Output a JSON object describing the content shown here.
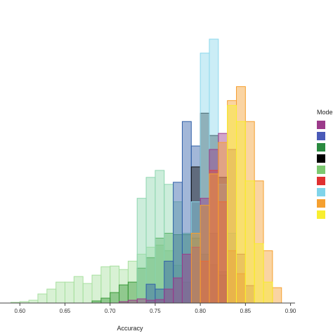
{
  "chart_data": {
    "type": "bar",
    "subtype": "overlapping-histogram",
    "title": "",
    "xlabel": "Accuracy",
    "ylabel": "",
    "xlim": [
      0.578,
      0.905
    ],
    "ylim": [
      0,
      420
    ],
    "bin_width": 0.01,
    "grid": false,
    "legend": {
      "title": "Model",
      "placement": "right",
      "entries": [
        "",
        "",
        "",
        "",
        "",
        "",
        "",
        "",
        ""
      ]
    },
    "x_ticks": [
      "0.60",
      "0.65",
      "0.70",
      "0.75",
      "0.80",
      "0.85",
      "0.90"
    ],
    "x_tick_values": [
      0.6,
      0.65,
      0.7,
      0.75,
      0.8,
      0.85,
      0.9
    ],
    "series": [
      {
        "color": "#a8e0a0",
        "bins": [
          [
            0.59,
            0.6,
            1
          ],
          [
            0.6,
            0.61,
            2
          ],
          [
            0.61,
            0.62,
            4
          ],
          [
            0.62,
            0.63,
            13
          ],
          [
            0.63,
            0.64,
            20
          ],
          [
            0.64,
            0.65,
            30
          ],
          [
            0.65,
            0.66,
            30
          ],
          [
            0.66,
            0.67,
            38
          ],
          [
            0.67,
            0.68,
            28
          ],
          [
            0.68,
            0.69,
            40
          ],
          [
            0.69,
            0.7,
            52
          ],
          [
            0.7,
            0.71,
            53
          ],
          [
            0.71,
            0.72,
            48
          ],
          [
            0.72,
            0.73,
            60
          ],
          [
            0.73,
            0.74,
            70
          ],
          [
            0.74,
            0.75,
            80
          ],
          [
            0.75,
            0.76,
            83
          ],
          [
            0.76,
            0.77,
            75
          ],
          [
            0.77,
            0.78,
            54
          ],
          [
            0.78,
            0.79,
            30
          ]
        ]
      },
      {
        "color": "#3a9a3a",
        "bins": [
          [
            0.68,
            0.69,
            3
          ],
          [
            0.69,
            0.7,
            7
          ],
          [
            0.7,
            0.71,
            15
          ],
          [
            0.71,
            0.72,
            26
          ],
          [
            0.72,
            0.73,
            30
          ],
          [
            0.73,
            0.74,
            50
          ],
          [
            0.74,
            0.75,
            65
          ],
          [
            0.75,
            0.76,
            93
          ],
          [
            0.76,
            0.77,
            100
          ],
          [
            0.77,
            0.78,
            98
          ],
          [
            0.78,
            0.79,
            98
          ],
          [
            0.79,
            0.8,
            93
          ],
          [
            0.8,
            0.81,
            70
          ],
          [
            0.81,
            0.82,
            55
          ],
          [
            0.82,
            0.83,
            40
          ]
        ]
      },
      {
        "color": "#8fd6b0",
        "bins": [
          [
            0.73,
            0.74,
            150
          ],
          [
            0.74,
            0.75,
            180
          ],
          [
            0.75,
            0.76,
            190
          ],
          [
            0.76,
            0.77,
            170
          ],
          [
            0.77,
            0.78,
            145
          ],
          [
            0.78,
            0.79,
            100
          ],
          [
            0.79,
            0.8,
            60
          ],
          [
            0.8,
            0.81,
            20
          ]
        ]
      },
      {
        "color": "#3060a8",
        "bins": [
          [
            0.74,
            0.75,
            27
          ],
          [
            0.75,
            0.76,
            20
          ],
          [
            0.76,
            0.77,
            60
          ],
          [
            0.77,
            0.78,
            173
          ],
          [
            0.78,
            0.79,
            260
          ],
          [
            0.79,
            0.8,
            225
          ],
          [
            0.8,
            0.81,
            140
          ],
          [
            0.81,
            0.82,
            100
          ],
          [
            0.82,
            0.83,
            45
          ]
        ]
      },
      {
        "color": "#101010",
        "bins": [
          [
            0.79,
            0.8,
            195
          ],
          [
            0.8,
            0.81,
            272
          ],
          [
            0.81,
            0.82,
            240
          ],
          [
            0.82,
            0.83,
            180
          ]
        ]
      },
      {
        "color": "#8cd8ec",
        "bins": [
          [
            0.79,
            0.8,
            145
          ],
          [
            0.8,
            0.81,
            358
          ],
          [
            0.81,
            0.82,
            378
          ],
          [
            0.82,
            0.83,
            170
          ],
          [
            0.83,
            0.84,
            100
          ]
        ]
      },
      {
        "color": "#9b3a8a",
        "bins": [
          [
            0.71,
            0.72,
            2
          ],
          [
            0.72,
            0.73,
            4
          ],
          [
            0.73,
            0.74,
            6
          ],
          [
            0.74,
            0.75,
            4
          ],
          [
            0.75,
            0.76,
            5
          ],
          [
            0.76,
            0.77,
            20
          ],
          [
            0.77,
            0.78,
            36
          ],
          [
            0.78,
            0.79,
            70
          ],
          [
            0.79,
            0.8,
            80
          ],
          [
            0.8,
            0.81,
            150
          ],
          [
            0.81,
            0.82,
            220
          ],
          [
            0.82,
            0.83,
            243
          ],
          [
            0.83,
            0.84,
            220
          ],
          [
            0.84,
            0.85,
            70
          ],
          [
            0.85,
            0.86,
            25
          ]
        ]
      },
      {
        "color": "#e04040",
        "bins": [
          [
            0.8,
            0.81,
            60
          ],
          [
            0.81,
            0.82,
            190
          ],
          [
            0.82,
            0.83,
            145
          ],
          [
            0.83,
            0.84,
            75
          ],
          [
            0.84,
            0.85,
            42
          ]
        ]
      },
      {
        "color": "#f5a030",
        "bins": [
          [
            0.79,
            0.8,
            100
          ],
          [
            0.8,
            0.81,
            140
          ],
          [
            0.81,
            0.82,
            185
          ],
          [
            0.82,
            0.83,
            230
          ],
          [
            0.83,
            0.84,
            290
          ],
          [
            0.84,
            0.85,
            310
          ],
          [
            0.85,
            0.86,
            260
          ],
          [
            0.86,
            0.87,
            175
          ],
          [
            0.87,
            0.88,
            75
          ],
          [
            0.88,
            0.89,
            22
          ]
        ]
      },
      {
        "color": "#f8ee30",
        "bins": [
          [
            0.83,
            0.84,
            283
          ],
          [
            0.84,
            0.85,
            260
          ],
          [
            0.85,
            0.86,
            175
          ],
          [
            0.86,
            0.87,
            85
          ],
          [
            0.87,
            0.88,
            30
          ]
        ]
      }
    ],
    "legend_colors": [
      "#9b3a8a",
      "#4a5ab8",
      "#2a8a40",
      "#000000",
      "#7cc870",
      "#e03030",
      "#80d4ea",
      "#f5a030",
      "#f8ee30"
    ]
  }
}
